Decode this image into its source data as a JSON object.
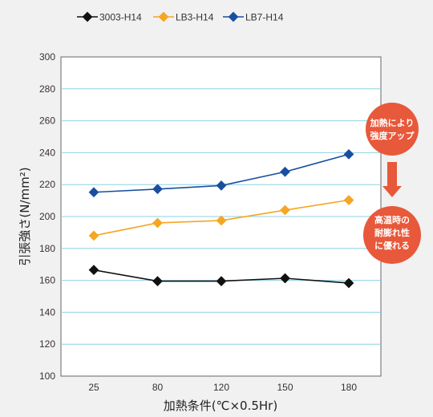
{
  "chart_data": {
    "type": "line",
    "categories": [
      "25",
      "80",
      "120",
      "150",
      "180"
    ],
    "series": [
      {
        "name": "3003-H14",
        "color": "#111111",
        "values": [
          166.5,
          159.5,
          159.5,
          161.3,
          158.3
        ]
      },
      {
        "name": "LB3-H14",
        "color": "#f5a623",
        "values": [
          188.0,
          196.0,
          197.5,
          204.0,
          210.3
        ]
      },
      {
        "name": "LB7-H14",
        "color": "#1a4fa0",
        "values": [
          215.2,
          217.2,
          219.4,
          228.0,
          239.0
        ]
      }
    ],
    "ylim": [
      100,
      300
    ],
    "yticks": [
      "100",
      "120",
      "140",
      "160",
      "180",
      "200",
      "220",
      "240",
      "260",
      "280",
      "300"
    ],
    "ylabel": "引張強さ(N/mm²)",
    "xlabel": "加熱条件(℃×0.5Hr)",
    "grid": true,
    "legend_position": "top-left",
    "annotations": [
      {
        "lines": [
          "加熱により",
          "強度アップ"
        ],
        "color": "#e8583a"
      },
      {
        "lines": [
          "高温時の",
          "耐膨れ性",
          "に優れる"
        ],
        "color": "#e8583a"
      }
    ],
    "gridline_color": "#8fd0e6"
  }
}
